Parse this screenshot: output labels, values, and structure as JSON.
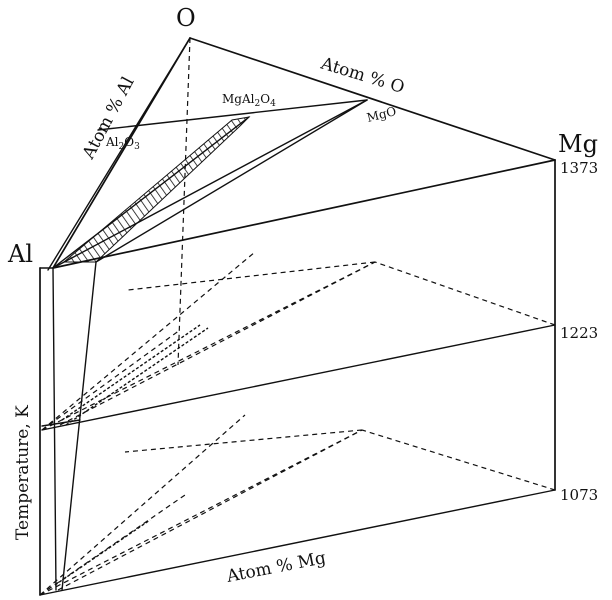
{
  "labels": {
    "corner_o": "O",
    "corner_mg": "Mg",
    "corner_al": "Al",
    "axis_atom_o": "Atom % O",
    "axis_atom_al": "Atom % Al",
    "axis_atom_mg": "Atom % Mg",
    "axis_temperature": "Temperature, K"
  },
  "temperatures": {
    "t_top": "1373",
    "t_mid": "1223",
    "t_bottom": "1073"
  },
  "phases": {
    "al2o3": {
      "base": "Al",
      "sub1": "2",
      "mid": "O",
      "sub2": "3"
    },
    "mgal2o4": {
      "base": "MgAl",
      "sub1": "2",
      "mid": "O",
      "sub2": "4"
    },
    "mgo": "MgO"
  }
}
